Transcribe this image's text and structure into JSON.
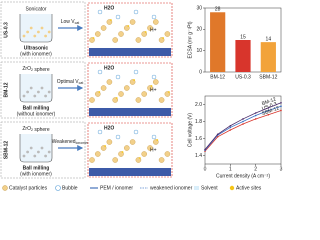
{
  "panels": [
    {
      "name": "US-0.3",
      "tool": "Sonicator",
      "method": "Ultrasonic",
      "condition": "(with ionomer)",
      "arrow": {
        "text": "Low V",
        "sub": "cat"
      }
    },
    {
      "name": "BM-12",
      "tool": "ZrO",
      "tool_sub": "2",
      "tool_end": " sphere",
      "method": "Ball milling",
      "condition": "(without ionomer)",
      "arrow": {
        "text": "Optimal V",
        "sub": "cat"
      }
    },
    {
      "name": "SBM-12",
      "tool": "ZrO",
      "tool_sub": "2",
      "tool_end": " sphere",
      "method": "Ball milling",
      "condition": "(with ionomer)",
      "arrow": {
        "text": "Weakened",
        "sub": "ionomer"
      }
    }
  ],
  "species": {
    "water": "H2O",
    "proton": "H+"
  },
  "legend": [
    "Catalyst particles",
    "Bubble",
    "PEM / ionomer",
    "weakened ionomer",
    "Solvent",
    "Active sites"
  ],
  "chart_data": [
    {
      "type": "bar",
      "y_label": "ECSA (m² g⁻¹Pt)",
      "categories": [
        "BM-12",
        "US-0.3",
        "SBM-12"
      ],
      "values": [
        28,
        15,
        14
      ],
      "colors": [
        "#e0782a",
        "#d8352c",
        "#f2a33a"
      ],
      "ylim": [
        0,
        30
      ],
      "yticks": [
        0,
        10,
        20,
        30
      ]
    },
    {
      "type": "line",
      "x_label": "Current density (A cm⁻²)",
      "y_label": "Cell voltage (V)",
      "x": [
        0,
        0.5,
        1,
        1.5,
        2,
        2.5,
        3
      ],
      "series": [
        {
          "name": "BM-12",
          "color": "#d8352c",
          "values": [
            1.45,
            1.62,
            1.7,
            1.77,
            1.83,
            1.88,
            1.93
          ]
        },
        {
          "name": "US-0.3",
          "color": "#3a6fc4",
          "values": [
            1.46,
            1.64,
            1.73,
            1.8,
            1.87,
            1.93,
            1.98
          ]
        },
        {
          "name": "SBM-12",
          "color": "#4a2a6a",
          "values": [
            1.47,
            1.65,
            1.75,
            1.83,
            1.9,
            1.96,
            2.02
          ]
        }
      ],
      "xlim": [
        0,
        3
      ],
      "xticks": [
        0,
        1,
        2,
        3
      ],
      "ylim": [
        1.3,
        2.1
      ],
      "yticks": [
        1.4,
        1.6,
        1.8,
        {
          "value": 2,
          "label": "2.0"
        }
      ]
    }
  ]
}
